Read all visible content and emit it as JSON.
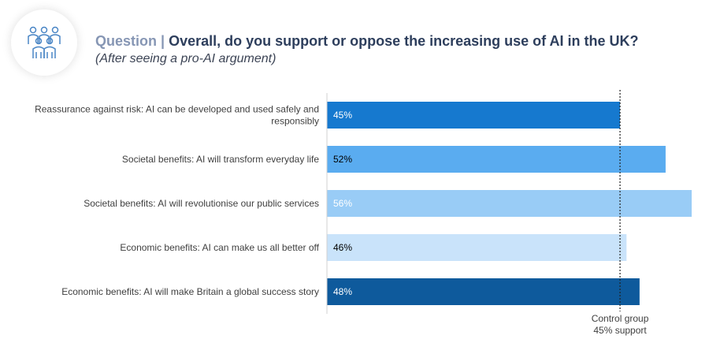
{
  "header": {
    "prefix": "Question |",
    "title": "Overall, do you support or oppose the increasing use of AI in the UK?",
    "subtitle": "(After seeing a pro-AI argument)",
    "logo_icon": "people-group-icon"
  },
  "chart_data": {
    "type": "bar",
    "orientation": "horizontal",
    "categories": [
      [
        "Reassurance against risk: AI can be developed and used safely and",
        "responsibly"
      ],
      [
        "Societal benefits: AI will transform everyday life"
      ],
      [
        "Societal benefits: AI will revolutionise our public services"
      ],
      [
        "Economic benefits: AI can make us all better off"
      ],
      [
        "Economic benefits: AI will make Britain a global success story"
      ]
    ],
    "values": [
      45,
      52,
      56,
      46,
      48
    ],
    "value_labels": [
      "45%",
      "52%",
      "56%",
      "46%",
      "48%"
    ],
    "bar_colors": [
      "#1679cf",
      "#5aacf0",
      "#99ccf6",
      "#c9e3fa",
      "#0e5a9c"
    ],
    "label_colors": [
      "#ffffff",
      "#000000",
      "#ffffff",
      "#000000",
      "#ffffff"
    ],
    "xlim": [
      0,
      56
    ],
    "reference_line": {
      "value": 45,
      "label": [
        "Control group",
        "45% support"
      ]
    }
  }
}
